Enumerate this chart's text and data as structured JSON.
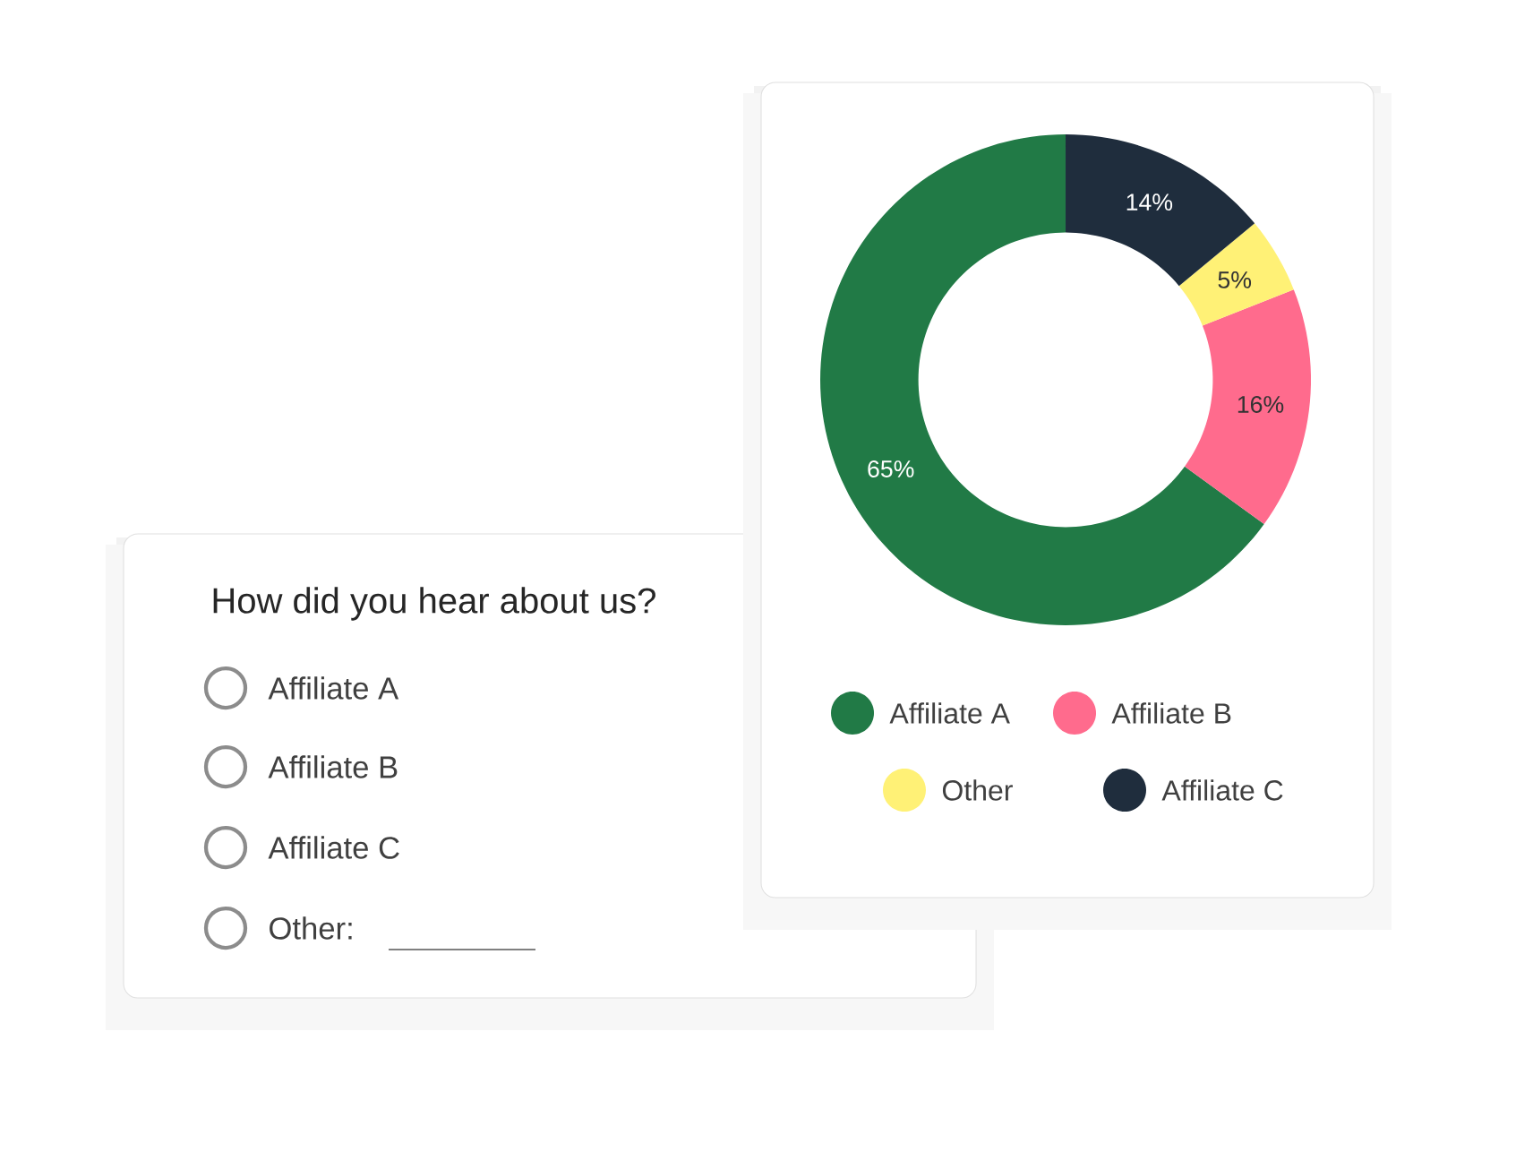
{
  "chart_data": [
    {
      "type": "donut",
      "categories": [
        "Affiliate A",
        "Affiliate B",
        "Other",
        "Affiliate C"
      ],
      "values": [
        65,
        16,
        5,
        14
      ],
      "colors": [
        "#217a46",
        "#ff6b8d",
        "#fff176",
        "#1f2d3d"
      ],
      "value_labels": [
        "65%",
        "16%",
        "5%",
        "14%"
      ],
      "legend": "bottom"
    },
    {
      "type": "other",
      "title": "How did you hear about us?",
      "annotations": [
        "Affiliate A",
        "Affiliate B",
        "Affiliate C",
        "Other:"
      ]
    }
  ]
}
